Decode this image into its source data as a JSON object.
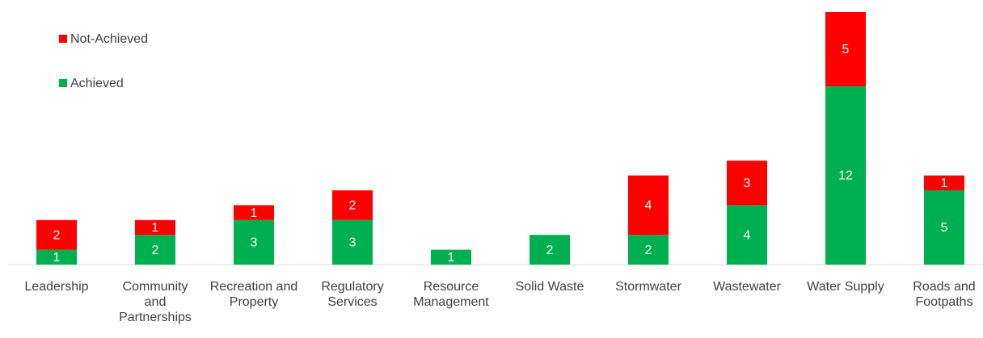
{
  "chart_data": {
    "type": "stacked-bar",
    "categories": [
      "Leadership",
      "Community and Partnerships",
      "Recreation and Property",
      "Regulatory Services",
      "Resource Management",
      "Solid Waste",
      "Stormwater",
      "Wastewater",
      "Water Supply",
      "Roads and Footpaths"
    ],
    "series": [
      {
        "name": "Achieved",
        "color": "#00b050",
        "values": [
          1,
          2,
          3,
          3,
          1,
          2,
          2,
          4,
          12,
          5
        ]
      },
      {
        "name": "Not-Achieved",
        "color": "#ff0000",
        "values": [
          2,
          1,
          1,
          2,
          0,
          0,
          4,
          3,
          5,
          1
        ]
      }
    ],
    "legend": "top-left"
  }
}
